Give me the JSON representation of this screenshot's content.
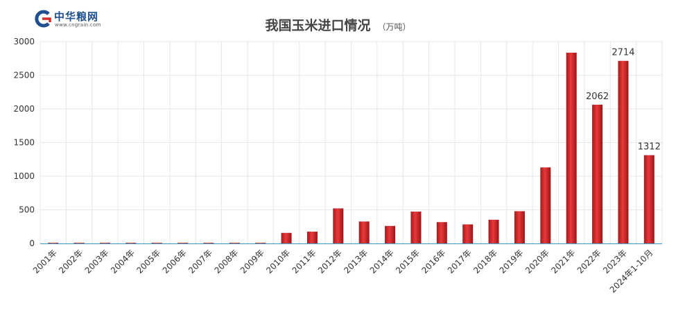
{
  "brand": {
    "name": "中华粮网",
    "url": "www.cngrain.com"
  },
  "chart_data": {
    "type": "bar",
    "title": "我国玉米进口情况",
    "unit": "（万吨）",
    "categories": [
      "2001年",
      "2002年",
      "2003年",
      "2004年",
      "2005年",
      "2006年",
      "2007年",
      "2008年",
      "2009年",
      "2010年",
      "2011年",
      "2012年",
      "2013年",
      "2014年",
      "2015年",
      "2016年",
      "2017年",
      "2018年",
      "2019年",
      "2020年",
      "2021年",
      "2022年",
      "2023年",
      "2024年1-10月"
    ],
    "values": [
      4,
      1,
      0,
      0,
      0,
      7,
      4,
      5,
      8,
      157,
      175,
      521,
      326,
      260,
      473,
      317,
      283,
      352,
      479,
      1130,
      2835,
      2062,
      2714,
      1312
    ],
    "data_labels": {
      "21": "2062",
      "22": "2714",
      "23": "1312"
    },
    "ylim": [
      0,
      3000
    ],
    "yticks": [
      0,
      500,
      1000,
      1500,
      2000,
      2500,
      3000
    ],
    "grid": true,
    "colors": {
      "bar": "#d42a2c",
      "bar_dark": "#8e1214",
      "grid": "#e6e6e6",
      "axis": "#4aa3c8"
    }
  }
}
